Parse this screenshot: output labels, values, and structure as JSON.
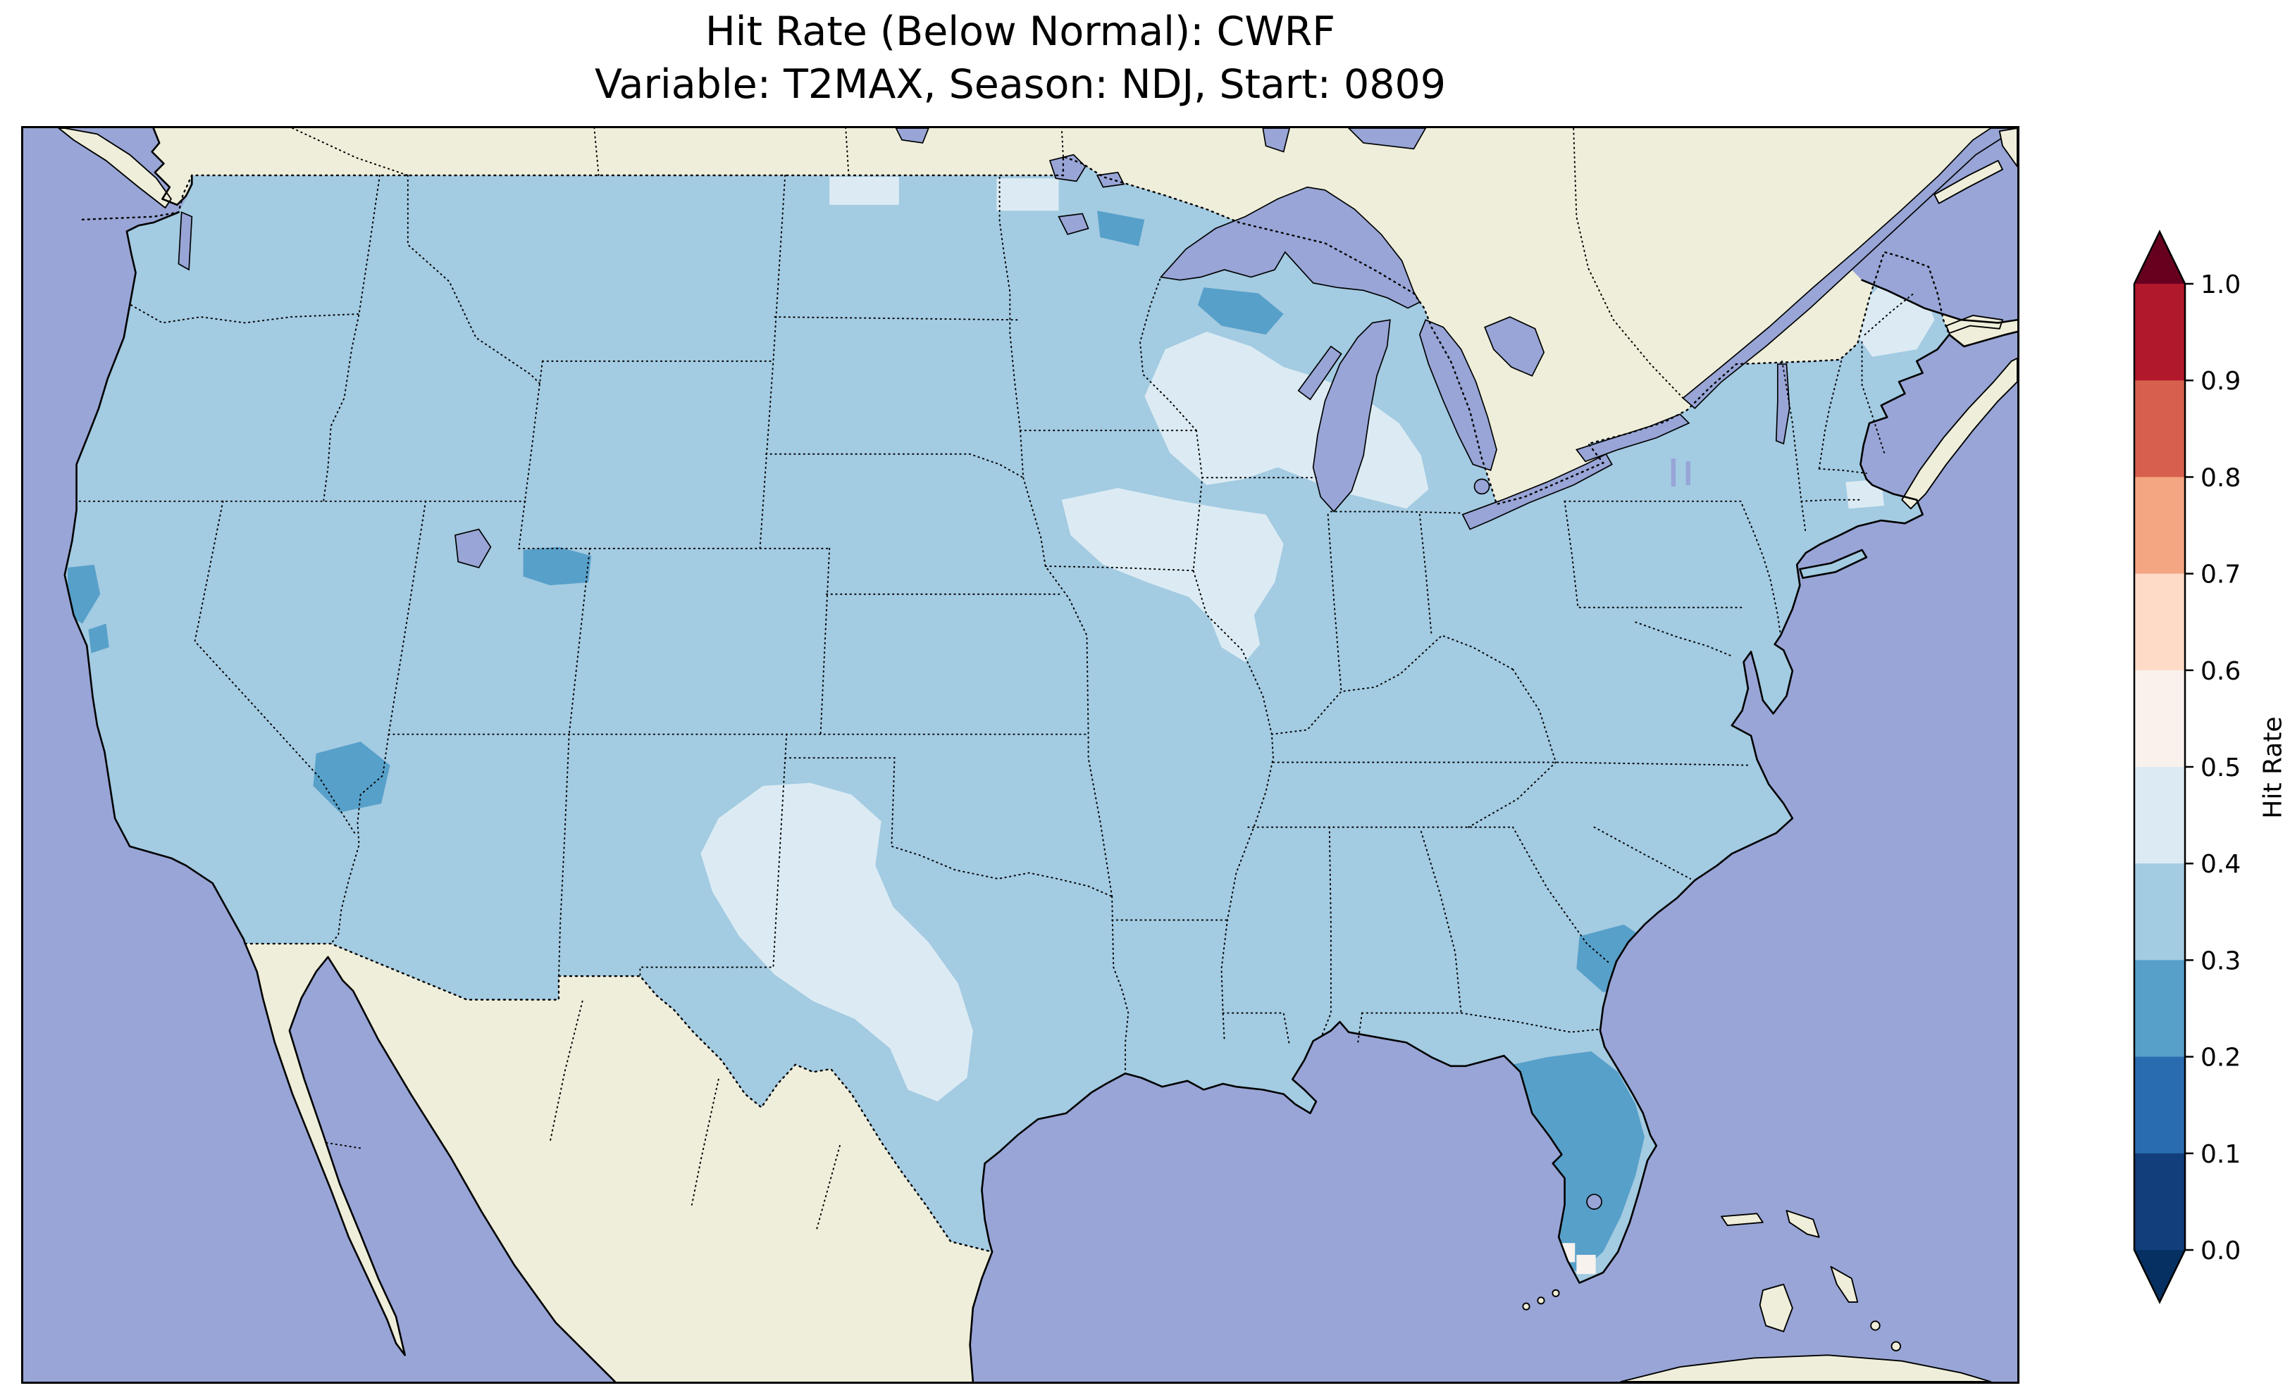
{
  "title": {
    "line1": "Hit Rate (Below Normal): CWRF",
    "line2": "Variable: T2MAX, Season: NDJ, Start: 0809"
  },
  "colorbar": {
    "label": "Hit Rate",
    "ticks": [
      "1.0",
      "0.9",
      "0.8",
      "0.7",
      "0.6",
      "0.5",
      "0.4",
      "0.3",
      "0.2",
      "0.1",
      "0.0"
    ],
    "segments_top_to_bottom": [
      "#67001f",
      "#b2182b",
      "#d6604d",
      "#f4a582",
      "#fddbc7",
      "#f9f1ec",
      "#dcebf3",
      "#a3cbe2",
      "#57a0c9",
      "#2a6cb0",
      "#123f7c",
      "#053061"
    ],
    "extend": "both"
  },
  "map": {
    "colors": {
      "ocean": "#98a5d6",
      "land": "#efeeda",
      "base": "#a3cbe2",
      "pale": "#dcebf3",
      "dark": "#57a0c9",
      "white": "#f7f2ee"
    },
    "features": [
      "united-states",
      "canada",
      "mexico",
      "great-lakes",
      "gulf-of-mexico",
      "atlantic-ocean",
      "pacific-ocean",
      "gulf-of-california",
      "baja-california",
      "florida",
      "nova-scotia",
      "bahamas",
      "cuba"
    ]
  },
  "chart_data": {
    "type": "heatmap",
    "title": "Hit Rate (Below Normal): CWRF",
    "subtitle": "Variable: T2MAX, Season: NDJ, Start: 0809",
    "metric": "Hit Rate",
    "category": "Below Normal",
    "model": "CWRF",
    "variable": "T2MAX",
    "season": "NDJ",
    "start": "0809",
    "region": "Contiguous United States with surrounding Canada, Mexico, Pacific, Gulf and Atlantic shown without data",
    "colorbar": {
      "label": "Hit Rate",
      "range": [
        0.0,
        1.0
      ],
      "tick_step": 0.1,
      "ticks": [
        1.0,
        0.9,
        0.8,
        0.7,
        0.6,
        0.5,
        0.4,
        0.3,
        0.2,
        0.1,
        0.0
      ],
      "extend": "both",
      "palette": "RdBu_r discrete with 0.1 bins"
    },
    "observed_values": [
      {
        "region": "Most of the contiguous US",
        "hit_rate_bin": "0.3-0.4"
      },
      {
        "region": "West and central Texas into eastern New Mexico",
        "hit_rate_bin": "0.4-0.5"
      },
      {
        "region": "Upper Midwest: Iowa, northern Illinois, Wisconsin, central Michigan",
        "hit_rate_bin": "0.4-0.5"
      },
      {
        "region": "Small cells in eastern Massachusetts and interior Maine",
        "hit_rate_bin": "0.4-0.5"
      },
      {
        "region": "Small cells along US-Canada border in Montana and North Dakota",
        "hit_rate_bin": "0.4-0.5"
      },
      {
        "region": "Florida peninsula",
        "hit_rate_bin": "0.2-0.3"
      },
      {
        "region": "Southern Nevada",
        "hit_rate_bin": "0.2-0.3"
      },
      {
        "region": "Coastal South Carolina",
        "hit_rate_bin": "0.2-0.3"
      },
      {
        "region": "Southwest Wyoming / northern Utah cells",
        "hit_rate_bin": "0.2-0.3"
      },
      {
        "region": "Northern California coast cells",
        "hit_rate_bin": "0.2-0.3"
      },
      {
        "region": "Upper Peninsula of Michigan / northern Wisconsin cells",
        "hit_rate_bin": "0.2-0.3"
      },
      {
        "region": "Tiny cells near the southern tip of Florida",
        "hit_rate_bin": "0.5-0.6"
      }
    ],
    "no_data_regions": [
      "Canada",
      "Mexico",
      "oceans",
      "Great Lakes"
    ]
  }
}
